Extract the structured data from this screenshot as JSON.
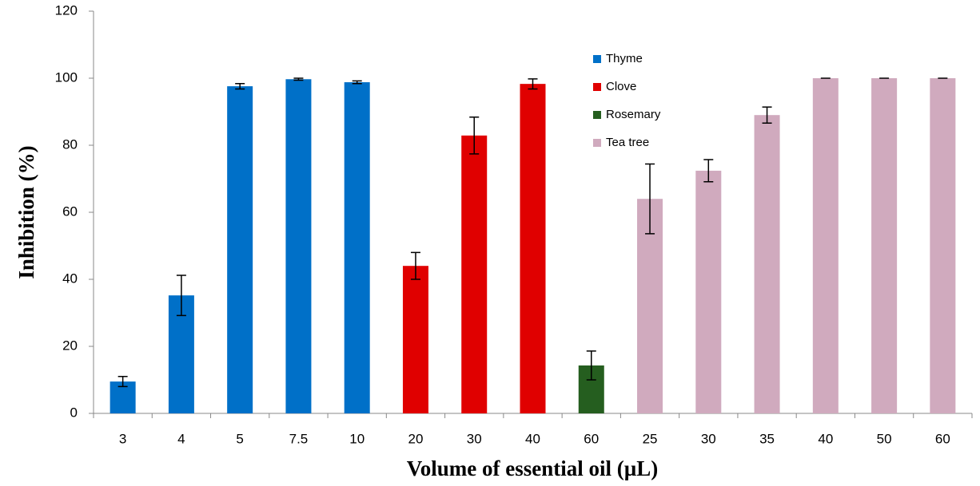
{
  "chart_data": {
    "type": "bar",
    "xlabel": "Volume of essential oil (µL)",
    "ylabel": "Inhibition (%)",
    "categories": [
      "3",
      "4",
      "5",
      "7.5",
      "10",
      "20",
      "30",
      "40",
      "60",
      "25",
      "30",
      "35",
      "40",
      "50",
      "60"
    ],
    "series": [
      {
        "name": "Thyme",
        "color": "#0070c8",
        "values": [
          9.5,
          35.2,
          97.6,
          99.7,
          98.8,
          null,
          null,
          null,
          null,
          null,
          null,
          null,
          null,
          null,
          null
        ],
        "errors": [
          1.5,
          6,
          0.8,
          0.3,
          0.4,
          null,
          null,
          null,
          null,
          null,
          null,
          null,
          null,
          null,
          null
        ]
      },
      {
        "name": "Clove",
        "color": "#e00000",
        "values": [
          null,
          null,
          null,
          null,
          null,
          44,
          82.9,
          98.3,
          null,
          null,
          null,
          null,
          null,
          null,
          null
        ],
        "errors": [
          null,
          null,
          null,
          null,
          null,
          4,
          5.5,
          1.5,
          null,
          null,
          null,
          null,
          null,
          null,
          null
        ]
      },
      {
        "name": "Rosemary",
        "color": "#255e1f",
        "values": [
          null,
          null,
          null,
          null,
          null,
          null,
          null,
          null,
          14.3,
          null,
          null,
          null,
          null,
          null,
          null
        ],
        "errors": [
          null,
          null,
          null,
          null,
          null,
          null,
          null,
          null,
          4.3,
          null,
          null,
          null,
          null,
          null,
          null
        ]
      },
      {
        "name": "Tea tree",
        "color": "#d0aabe",
        "values": [
          null,
          null,
          null,
          null,
          null,
          null,
          null,
          null,
          null,
          64,
          72.4,
          89,
          100,
          100,
          100
        ],
        "errors": [
          null,
          null,
          null,
          null,
          null,
          null,
          null,
          null,
          null,
          10.4,
          3.3,
          2.4,
          0,
          0,
          0
        ]
      }
    ],
    "ylim": [
      0,
      120
    ],
    "yticks": [
      0,
      20,
      40,
      60,
      80,
      100,
      120
    ],
    "grid": false
  }
}
